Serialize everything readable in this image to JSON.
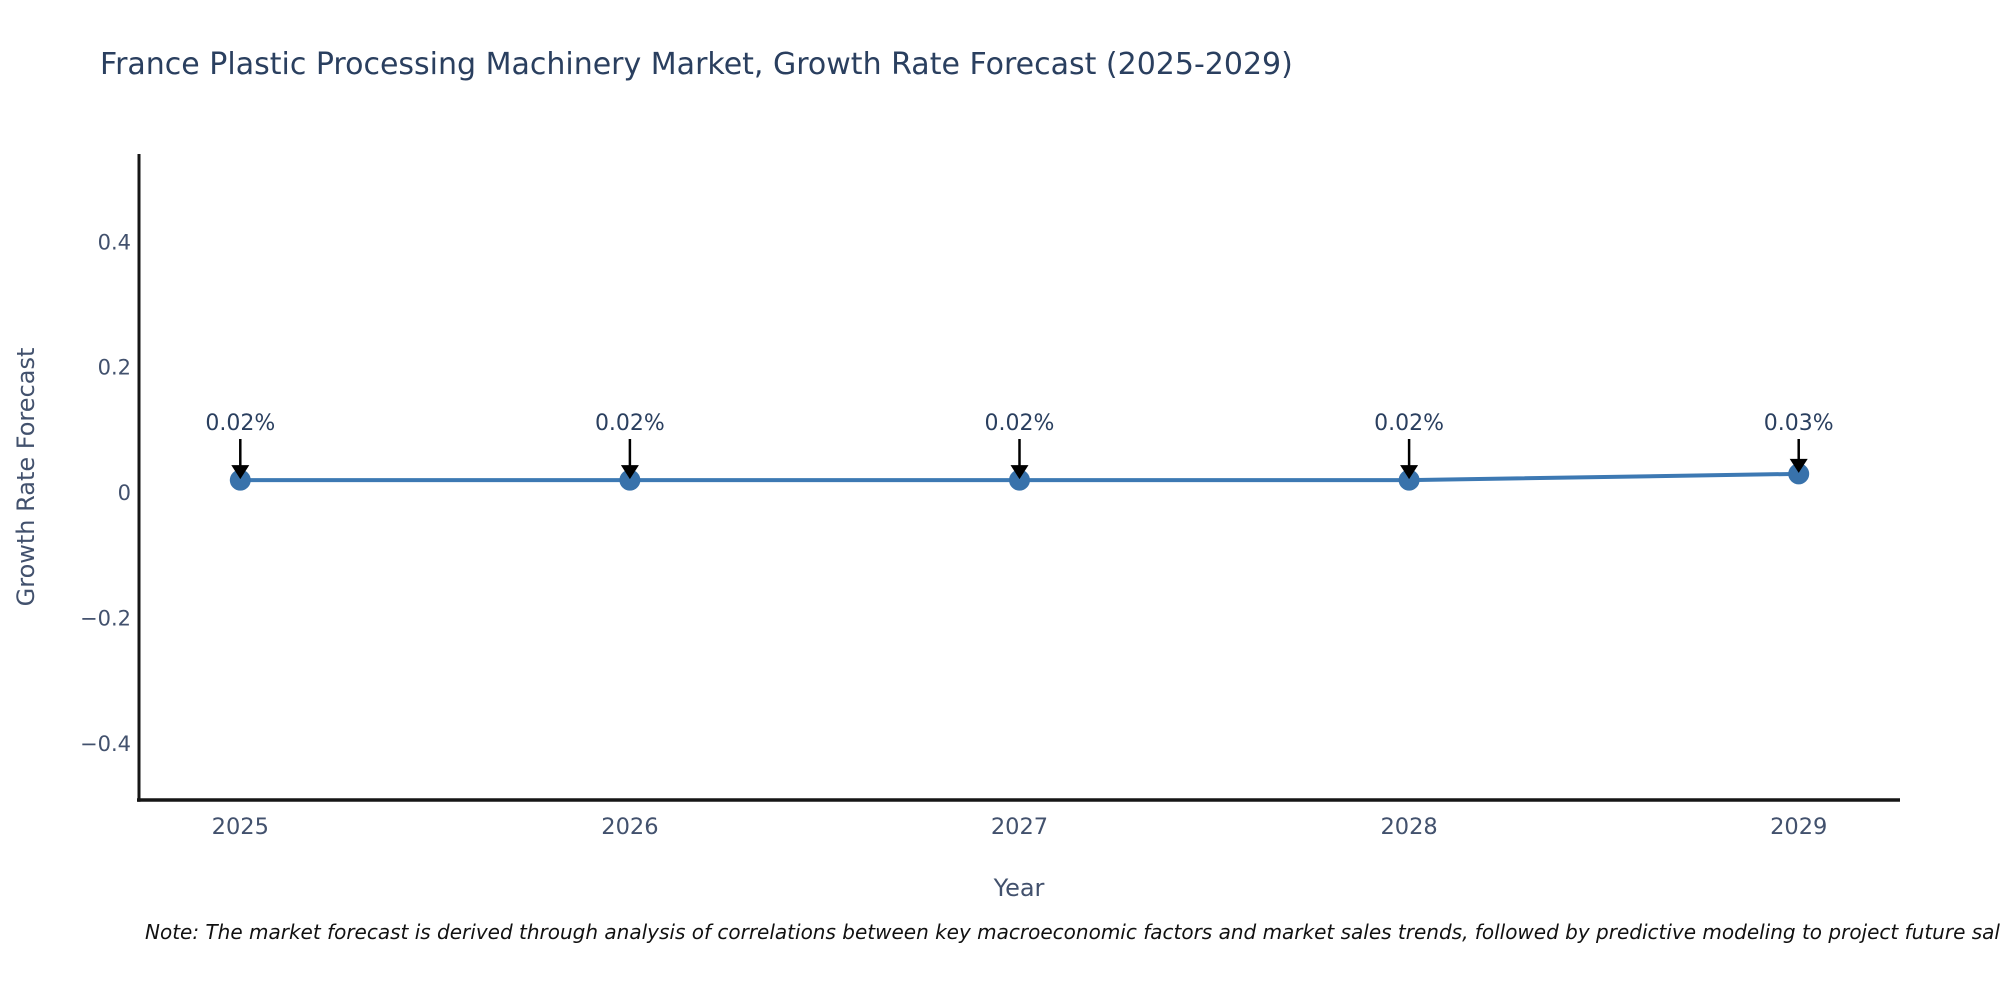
{
  "page": {
    "note": "Note: The market forecast is derived through analysis of correlations between key macroeconomic factors and market sales trends, followed by predictive modeling to project future sales."
  },
  "chart_data": {
    "type": "line",
    "title": "France Plastic Processing Machinery Market, Growth Rate Forecast (2025-2029)",
    "xlabel": "Year",
    "ylabel": "Growth Rate Forecast",
    "x": [
      2025,
      2026,
      2027,
      2028,
      2029
    ],
    "series": [
      {
        "name": "Growth Rate Forecast",
        "values": [
          0.02,
          0.02,
          0.02,
          0.02,
          0.03
        ]
      }
    ],
    "point_labels": [
      "0.02%",
      "0.02%",
      "0.02%",
      "0.02%",
      "0.03%"
    ],
    "xtick_labels": [
      "2025",
      "2026",
      "2027",
      "2028",
      "2029"
    ],
    "ytick_values": [
      0.4,
      0.2,
      0,
      -0.2,
      -0.4
    ],
    "ytick_labels": [
      "0.4",
      "0.2",
      "0",
      "−0.2",
      "−0.4"
    ],
    "xlim": [
      2024.74,
      2029.26
    ],
    "ylim": [
      -0.49,
      0.54
    ],
    "grid": false,
    "legend_position": "none",
    "colors": {
      "line": "#3d79b3",
      "marker": "#3872ab",
      "axis": "#161616",
      "tick_label": "#42516d",
      "annotation_text": "#2a3f5f",
      "arrow": "#000000",
      "background": "#ffffff"
    }
  }
}
